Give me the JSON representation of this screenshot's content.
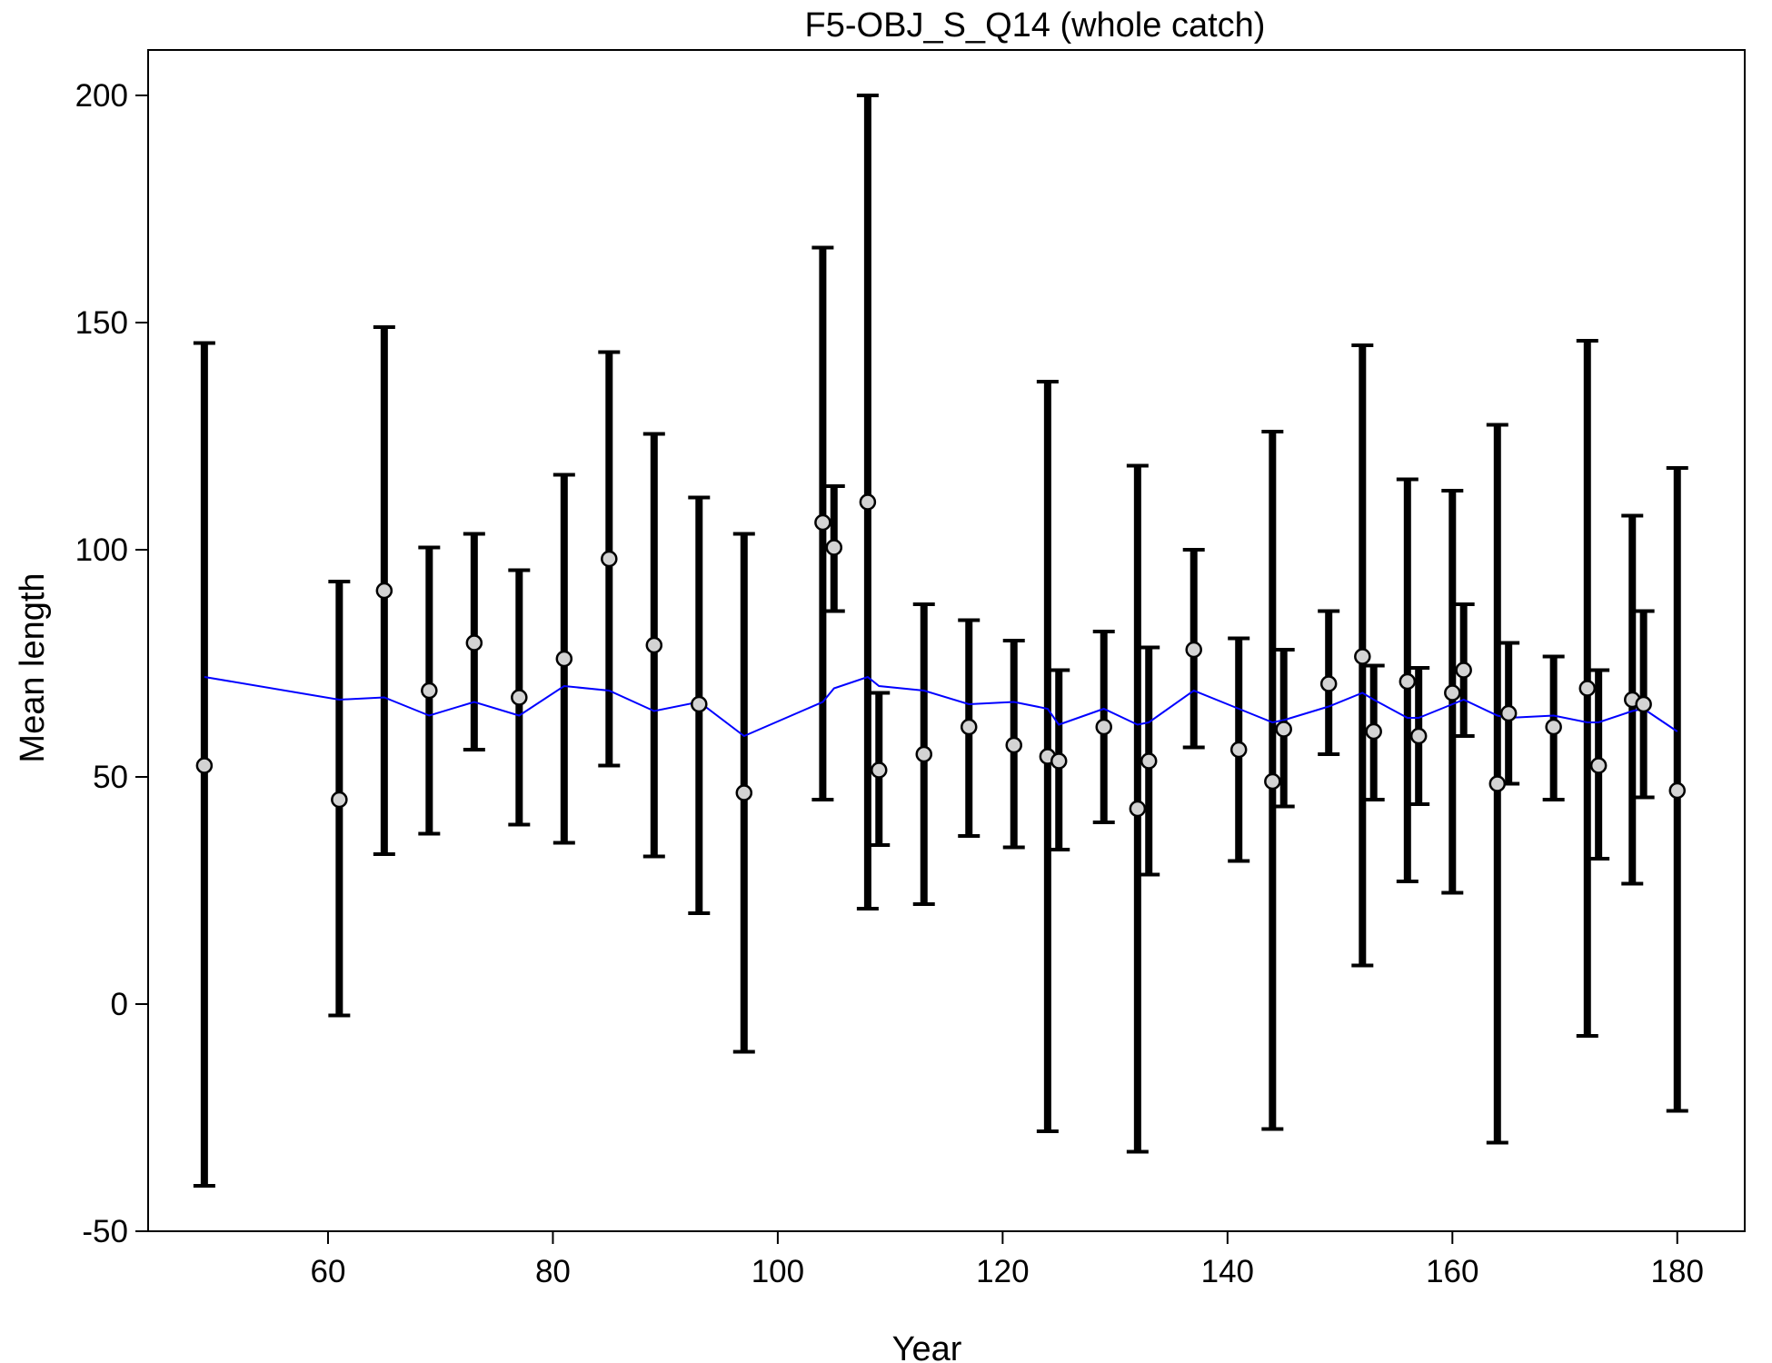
{
  "chart_data": {
    "type": "scatter",
    "title": "F5-OBJ_S_Q14 (whole catch)",
    "xlabel": "Year",
    "ylabel": "Mean length",
    "xlim": [
      44,
      186
    ],
    "ylim": [
      -50,
      210
    ],
    "xticks": [
      60,
      80,
      100,
      120,
      140,
      160,
      180
    ],
    "yticks": [
      -50,
      0,
      50,
      100,
      150,
      200
    ],
    "grid": false,
    "colors": {
      "observed_fill": "#d3d3d3",
      "observed_stroke": "#000000",
      "error_bar": "#000000",
      "expected_line": "#0000ff"
    },
    "observed": [
      {
        "x": 49,
        "y": 52.5,
        "lo": -40,
        "hi": 145.5
      },
      {
        "x": 61,
        "y": 45,
        "lo": -2.5,
        "hi": 93
      },
      {
        "x": 65,
        "y": 91,
        "lo": 33,
        "hi": 149
      },
      {
        "x": 69,
        "y": 69,
        "lo": 37.5,
        "hi": 100.5
      },
      {
        "x": 73,
        "y": 79.5,
        "lo": 56,
        "hi": 103.5
      },
      {
        "x": 77,
        "y": 67.5,
        "lo": 39.5,
        "hi": 95.5
      },
      {
        "x": 81,
        "y": 76,
        "lo": 35.5,
        "hi": 116.5
      },
      {
        "x": 85,
        "y": 98,
        "lo": 52.5,
        "hi": 143.5
      },
      {
        "x": 89,
        "y": 79,
        "lo": 32.5,
        "hi": 125.5
      },
      {
        "x": 93,
        "y": 66,
        "lo": 20,
        "hi": 111.5
      },
      {
        "x": 97,
        "y": 46.5,
        "lo": -10.5,
        "hi": 103.5
      },
      {
        "x": 104,
        "y": 106,
        "lo": 45,
        "hi": 166.5
      },
      {
        "x": 105,
        "y": 100.5,
        "lo": 86.5,
        "hi": 114
      },
      {
        "x": 108,
        "y": 110.5,
        "lo": 21,
        "hi": 200
      },
      {
        "x": 109,
        "y": 51.5,
        "lo": 35,
        "hi": 68.5
      },
      {
        "x": 113,
        "y": 55,
        "lo": 22,
        "hi": 88
      },
      {
        "x": 117,
        "y": 61,
        "lo": 37,
        "hi": 84.5
      },
      {
        "x": 121,
        "y": 57,
        "lo": 34.5,
        "hi": 80
      },
      {
        "x": 124,
        "y": 54.5,
        "lo": -28,
        "hi": 137
      },
      {
        "x": 125,
        "y": 53.5,
        "lo": 34,
        "hi": 73.5
      },
      {
        "x": 129,
        "y": 61,
        "lo": 40,
        "hi": 82
      },
      {
        "x": 132,
        "y": 43,
        "lo": -32.5,
        "hi": 118.5
      },
      {
        "x": 133,
        "y": 53.5,
        "lo": 28.5,
        "hi": 78.5
      },
      {
        "x": 137,
        "y": 78,
        "lo": 56.5,
        "hi": 100
      },
      {
        "x": 141,
        "y": 56,
        "lo": 31.5,
        "hi": 80.5
      },
      {
        "x": 144,
        "y": 49,
        "lo": -27.5,
        "hi": 126
      },
      {
        "x": 145,
        "y": 60.5,
        "lo": 43.5,
        "hi": 78
      },
      {
        "x": 149,
        "y": 70.5,
        "lo": 55,
        "hi": 86.5
      },
      {
        "x": 152,
        "y": 76.5,
        "lo": 8.5,
        "hi": 145
      },
      {
        "x": 153,
        "y": 60,
        "lo": 45,
        "hi": 74.5
      },
      {
        "x": 156,
        "y": 71,
        "lo": 27,
        "hi": 115.5
      },
      {
        "x": 157,
        "y": 59,
        "lo": 44,
        "hi": 74
      },
      {
        "x": 160,
        "y": 68.5,
        "lo": 24.5,
        "hi": 113
      },
      {
        "x": 161,
        "y": 73.5,
        "lo": 59,
        "hi": 88
      },
      {
        "x": 164,
        "y": 48.5,
        "lo": -30.5,
        "hi": 127.5
      },
      {
        "x": 165,
        "y": 64,
        "lo": 48.5,
        "hi": 79.5
      },
      {
        "x": 169,
        "y": 61,
        "lo": 45,
        "hi": 76.5
      },
      {
        "x": 172,
        "y": 69.5,
        "lo": -7,
        "hi": 146
      },
      {
        "x": 173,
        "y": 52.5,
        "lo": 32,
        "hi": 73.5
      },
      {
        "x": 176,
        "y": 67,
        "lo": 26.5,
        "hi": 107.5
      },
      {
        "x": 177,
        "y": 66,
        "lo": 45.5,
        "hi": 86.5
      },
      {
        "x": 180,
        "y": 47,
        "lo": -23.5,
        "hi": 118
      }
    ],
    "expected": {
      "x": [
        49,
        61,
        65,
        69,
        73,
        77,
        81,
        85,
        89,
        93,
        97,
        104,
        105,
        108,
        109,
        113,
        117,
        121,
        124,
        125,
        129,
        132,
        133,
        137,
        141,
        144,
        145,
        149,
        152,
        153,
        156,
        157,
        160,
        161,
        164,
        165,
        169,
        172,
        173,
        176,
        177,
        180
      ],
      "y": [
        72,
        67,
        67.5,
        63.5,
        66.5,
        63.5,
        70,
        69,
        64.5,
        66.5,
        59,
        66.5,
        69.5,
        72,
        70,
        69,
        66,
        66.5,
        65,
        61.5,
        65,
        61.5,
        62,
        69,
        65,
        62,
        62.5,
        65.5,
        68.5,
        67,
        63,
        63,
        66,
        67,
        63.5,
        63,
        63.5,
        62,
        62,
        64.5,
        65,
        60
      ]
    }
  }
}
